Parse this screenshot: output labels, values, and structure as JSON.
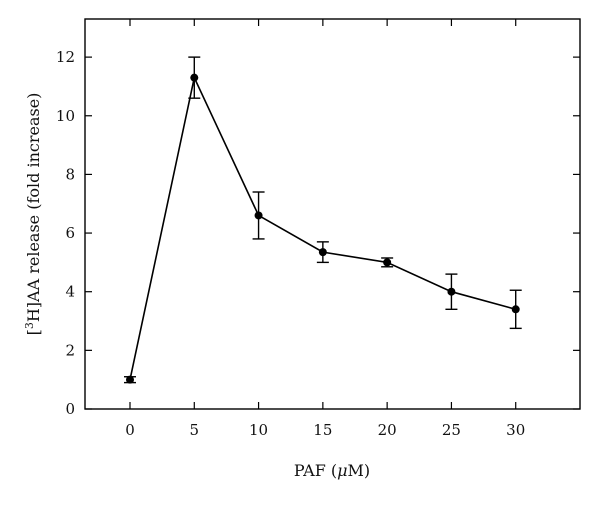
{
  "chart_data": {
    "type": "line",
    "xlabel_prefix": "PAF (",
    "xlabel_unit_italic": "μ",
    "xlabel_suffix": "M)",
    "ylabel_prefix": "[",
    "ylabel_sup": "3",
    "ylabel_suffix": "H]AA release (fold increase)",
    "xlim": [
      -3.5,
      35
    ],
    "ylim": [
      0,
      13.3
    ],
    "xticks": [
      0,
      5,
      10,
      15,
      20,
      25,
      30
    ],
    "yticks": [
      0,
      2,
      4,
      6,
      8,
      10,
      12
    ],
    "grid": false,
    "series": [
      {
        "x": [
          0,
          5,
          10,
          15,
          20,
          25,
          30
        ],
        "y": [
          1.0,
          11.3,
          6.6,
          5.35,
          5.0,
          4.0,
          3.4
        ],
        "error": [
          0.1,
          0.7,
          0.8,
          0.35,
          0.15,
          0.6,
          0.65
        ]
      }
    ]
  }
}
